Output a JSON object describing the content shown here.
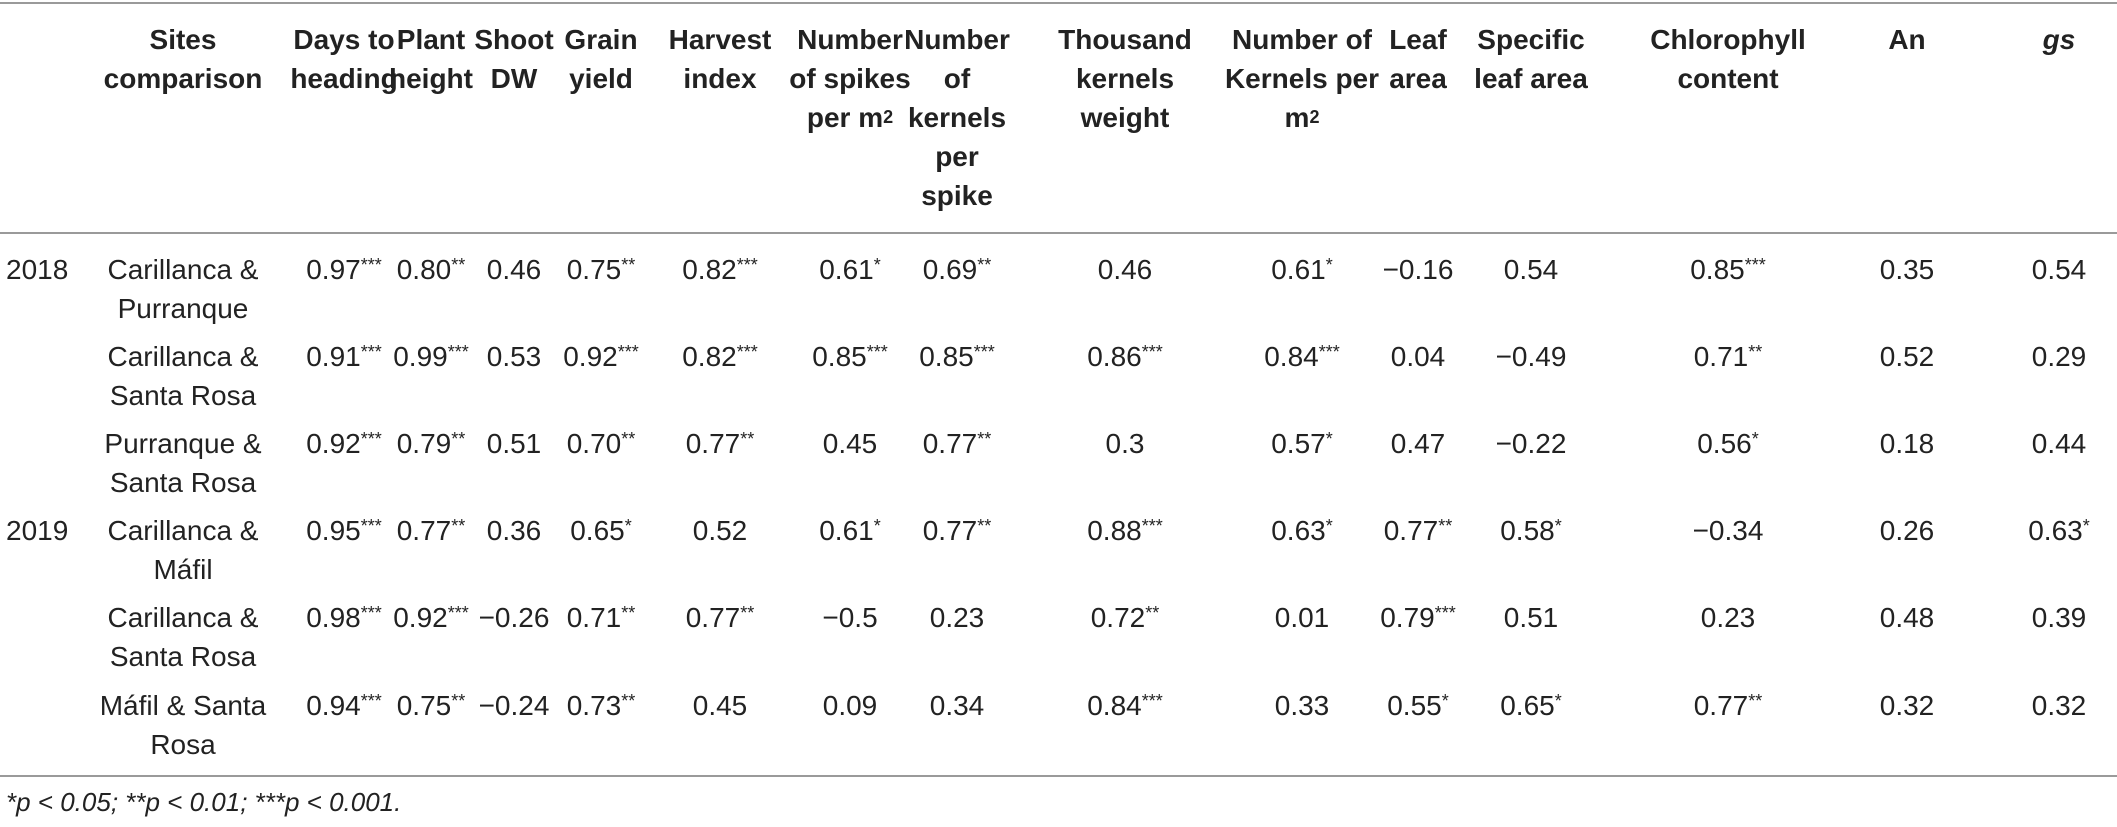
{
  "headers": [
    {
      "text": "Sites comparison",
      "sup": ""
    },
    {
      "text": "Days to heading",
      "sup": ""
    },
    {
      "text": "Plant height",
      "sup": ""
    },
    {
      "text": "Shoot DW",
      "sup": ""
    },
    {
      "text": "Grain yield",
      "sup": ""
    },
    {
      "text": "Harvest index",
      "sup": ""
    },
    {
      "text": "Number of spikes per m",
      "sup": "2"
    },
    {
      "text": "Number of kernels per spike",
      "sup": ""
    },
    {
      "text": "Thousand kernels weight",
      "sup": ""
    },
    {
      "text": "Number of Kernels per m",
      "sup": "2"
    },
    {
      "text": "Leaf area",
      "sup": ""
    },
    {
      "text": "Specific leaf area",
      "sup": ""
    },
    {
      "text": "Chlorophyll content",
      "sup": ""
    },
    {
      "text": "An",
      "sup": ""
    },
    {
      "text": "gs",
      "sup": "",
      "italic": true
    }
  ],
  "rows": [
    {
      "year": "2018",
      "site": "Carillanca & Purranque",
      "values": [
        "0.97***",
        "0.80**",
        "0.46",
        "0.75**",
        "0.82***",
        "0.61*",
        "0.69**",
        "0.46",
        "0.61*",
        "−0.16",
        "0.54",
        "0.85***",
        "0.35",
        "0.54"
      ]
    },
    {
      "year": "",
      "site": "Carillanca & Santa Rosa",
      "values": [
        "0.91***",
        "0.99***",
        "0.53",
        "0.92***",
        "0.82***",
        "0.85***",
        "0.85***",
        "0.86***",
        "0.84***",
        "0.04",
        "−0.49",
        "0.71**",
        "0.52",
        "0.29"
      ]
    },
    {
      "year": "",
      "site": "Purranque & Santa Rosa",
      "values": [
        "0.92***",
        "0.79**",
        "0.51",
        "0.70**",
        "0.77**",
        "0.45",
        "0.77**",
        "0.3",
        "0.57*",
        "0.47",
        "−0.22",
        "0.56*",
        "0.18",
        "0.44"
      ]
    },
    {
      "year": "2019",
      "site": "Carillanca & Máfil",
      "values": [
        "0.95***",
        "0.77**",
        "0.36",
        "0.65*",
        "0.52",
        "0.61*",
        "0.77**",
        "0.88***",
        "0.63*",
        "0.77**",
        "0.58*",
        "−0.34",
        "0.26",
        "0.63*"
      ]
    },
    {
      "year": "",
      "site": "Carillanca & Santa Rosa",
      "values": [
        "0.98***",
        "0.92***",
        "−0.26",
        "0.71**",
        "0.77**",
        "−0.5",
        "0.23",
        "0.72**",
        "0.01",
        "0.79***",
        "0.51",
        "0.23",
        "0.48",
        "0.39"
      ]
    },
    {
      "year": "",
      "site": "Máfil & Santa Rosa",
      "values": [
        "0.94***",
        "0.75**",
        "−0.24",
        "0.73**",
        "0.45",
        "0.09",
        "0.34",
        "0.84***",
        "0.33",
        "0.55*",
        "0.65*",
        "0.77**",
        "0.32",
        "0.32"
      ]
    }
  ],
  "footnote": "*p < 0.05; **p < 0.01; ***p < 0.001."
}
